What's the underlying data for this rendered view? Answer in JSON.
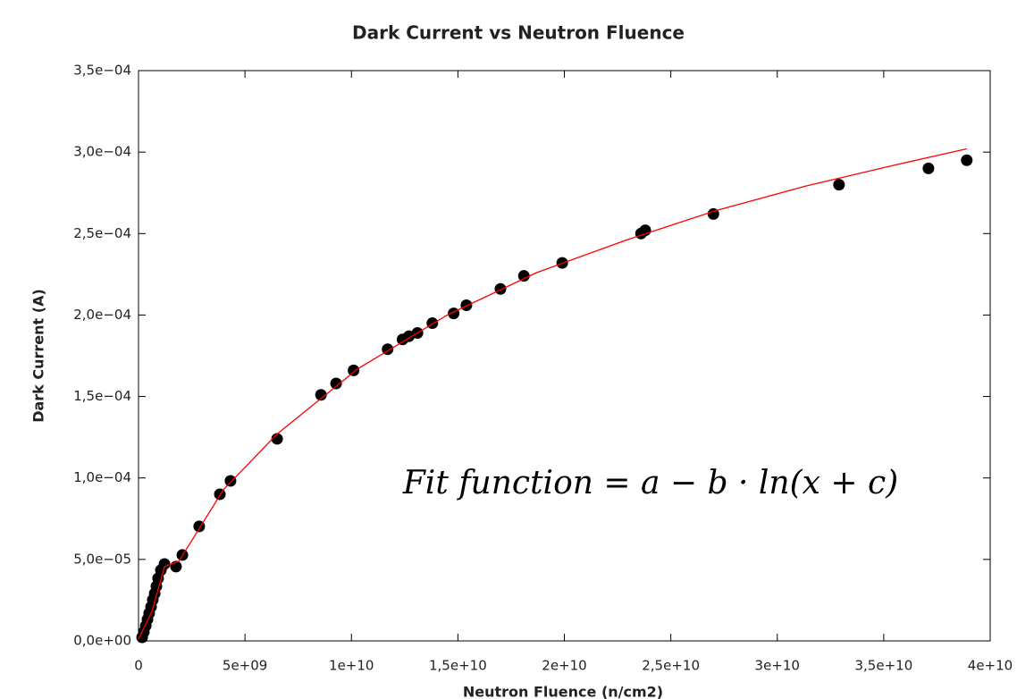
{
  "chart_data": {
    "type": "scatter",
    "title": "Dark Current vs Neutron Fluence",
    "x_label": "Neutron Fluence (n/cm2)",
    "y_label": "Dark Current (A)",
    "annotation": "Fit function = a − b · ln(x + c)",
    "xlim": [
      0,
      40000000000
    ],
    "ylim": [
      0,
      0.00035
    ],
    "xticks": [
      0,
      {
        "value": 5000000000,
        "label": "5e+09"
      },
      {
        "value": 10000000000,
        "label": "1e+10"
      },
      {
        "value": 15000000000,
        "label": "1,5e+10"
      },
      {
        "value": 20000000000,
        "label": "2e+10"
      },
      {
        "value": 25000000000,
        "label": "2,5e+10"
      },
      {
        "value": 30000000000,
        "label": "3e+10"
      },
      {
        "value": 35000000000,
        "label": "3,5e+10"
      },
      {
        "value": 40000000000,
        "label": "4e+10"
      }
    ],
    "yticks": [
      {
        "value": 0,
        "label": "0,0e+00"
      },
      {
        "value": 5e-05,
        "label": "5,0e−05"
      },
      {
        "value": 0.0001,
        "label": "1,0e−04"
      },
      {
        "value": 0.00015,
        "label": "1,5e−04"
      },
      {
        "value": 0.0002,
        "label": "2,0e−04"
      },
      {
        "value": 0.00025,
        "label": "2,5e−04"
      },
      {
        "value": 0.0003,
        "label": "3,0e−04"
      },
      {
        "value": 0.00035,
        "label": "3,5e−04"
      }
    ],
    "series": [
      {
        "mode": "markers",
        "color": "#000000",
        "x": [
          170000000,
          250000000,
          340000000,
          420000000,
          500000000,
          590000000,
          670000000,
          760000000,
          840000000,
          920000000,
          1050000000,
          1220000000,
          1760000000,
          2060000000,
          2850000000,
          3820000000,
          4320000000,
          6510000000,
          8570000000,
          9280000000,
          10100000000,
          11700000000,
          12400000000,
          12700000000,
          13100000000,
          13800000000,
          14800000000,
          15400000000,
          17000000000,
          18100000000,
          19900000000,
          23600000000,
          23800000000,
          27000000000,
          32900000000,
          37100000000,
          38900000000
        ],
        "values": [
          2.2e-06,
          5.5e-06,
          9.3e-06,
          1.32e-05,
          1.7e-05,
          2.09e-05,
          2.52e-05,
          2.91e-05,
          3.35e-05,
          3.84e-05,
          4.34e-05,
          4.72e-05,
          4.56e-05,
          5.27e-05,
          7.03e-05,
          9e-05,
          9.82e-05,
          0.000124,
          0.000151,
          0.000158,
          0.000166,
          0.000179,
          0.000185,
          0.000187,
          0.000189,
          0.000195,
          0.000201,
          0.000206,
          0.000216,
          0.000224,
          0.000232,
          0.00025,
          0.000252,
          0.000262,
          0.00028,
          0.00029,
          0.000295
        ]
      },
      {
        "mode": "line",
        "color": "#ff0000",
        "x": [
          0,
          630000000,
          1220000000,
          1890000000,
          3990000000,
          6510000000,
          10300000000,
          14500000000,
          18700000000,
          22900000000,
          27100000000,
          31300000000,
          35500000000,
          38900000000
        ],
        "values": [
          1.1e-06,
          1.81e-05,
          4.56e-05,
          4.88e-05,
          9.28e-05,
          0.000127,
          0.000167,
          0.0002,
          0.000226,
          0.000246,
          0.000264,
          0.000279,
          0.000292,
          0.000302
        ]
      }
    ]
  }
}
